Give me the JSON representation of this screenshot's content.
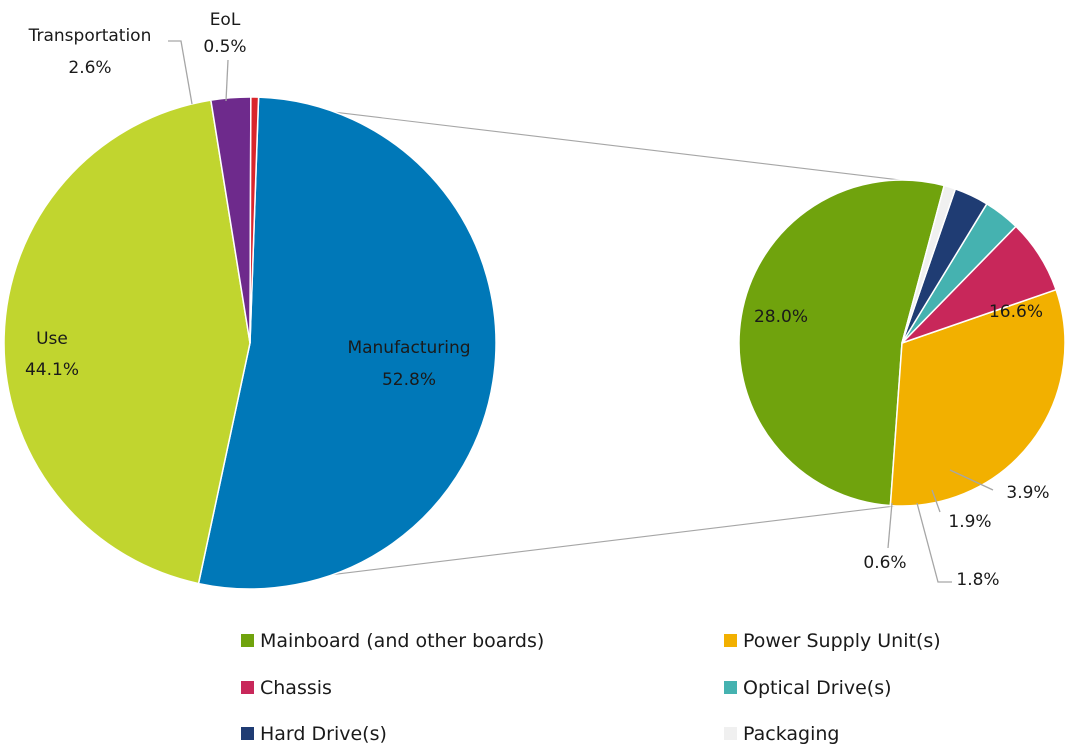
{
  "chart_data": [
    {
      "type": "pie",
      "slices": [
        {
          "label": "Manufacturing",
          "value": 52.8,
          "value_label": "52.8%",
          "color": "#0078b8"
        },
        {
          "label": "Use",
          "value": 44.1,
          "value_label": "44.1%",
          "color": "#c1d52f"
        },
        {
          "label": "Transportation",
          "value": 2.6,
          "value_label": "2.6%",
          "color": "#6e2a8c"
        },
        {
          "label": "EoL",
          "value": 0.5,
          "value_label": "0.5%",
          "color": "#d9262c"
        }
      ]
    },
    {
      "type": "pie",
      "exploded_from": "Manufacturing",
      "slices": [
        {
          "label": "Mainboard (and other boards)",
          "value": 28.0,
          "value_label": "28.0%",
          "color": "#70a30d"
        },
        {
          "label": "Power Supply Unit(s)",
          "value": 16.6,
          "value_label": "16.6%",
          "color": "#f2b000"
        },
        {
          "label": "Chassis",
          "value": 3.9,
          "value_label": "3.9%",
          "color": "#c8275a"
        },
        {
          "label": "Optical Drive(s)",
          "value": 1.9,
          "value_label": "1.9%",
          "color": "#45b2b0"
        },
        {
          "label": "Hard Drive(s)",
          "value": 1.8,
          "value_label": "1.8%",
          "color": "#1f3c73"
        },
        {
          "label": "Packaging",
          "value": 0.6,
          "value_label": "0.6%",
          "color": "#f0f0f0"
        }
      ],
      "legend": {
        "position": "bottom",
        "items": [
          "Mainboard (and other boards)",
          "Power Supply Unit(s)",
          "Chassis",
          "Optical Drive(s)",
          "Hard Drive(s)",
          "Packaging"
        ]
      }
    }
  ]
}
